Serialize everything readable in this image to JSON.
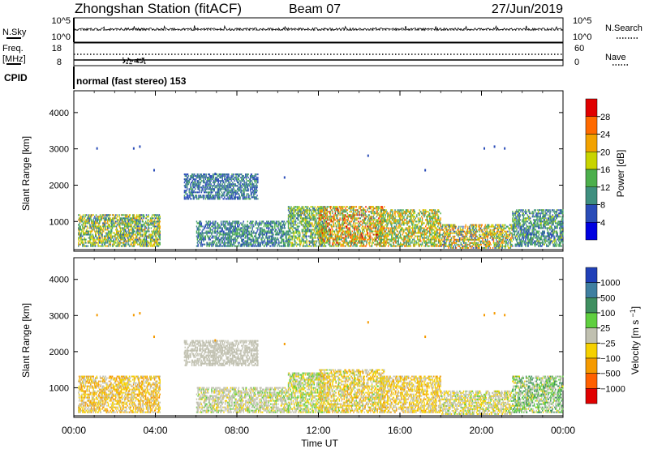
{
  "header": {
    "station": "Zhongshan Station (fitACF)",
    "beam": "Beam 07",
    "date": "27/Jun/2019"
  },
  "sky_panel": {
    "left_label": "N.Sky",
    "right_label": "N.Search",
    "left_ticks": [
      "10^5",
      "10^0"
    ],
    "right_ticks": [
      "10^5",
      "10^0"
    ]
  },
  "freq_panel": {
    "left_label_top": "Freq.",
    "left_label_unit": "[MHz]",
    "right_label": "Nave",
    "left_ticks": [
      "18",
      "8"
    ],
    "right_ticks": [
      "60",
      "0"
    ]
  },
  "cpid_panel": {
    "label": "CPID",
    "text": "normal (fast stereo) 153"
  },
  "x_axis": {
    "label": "Time UT",
    "ticks": [
      "00:00",
      "04:00",
      "08:00",
      "12:00",
      "16:00",
      "20:00",
      "00:00"
    ],
    "range_hours": [
      0,
      24
    ]
  },
  "chart_data": [
    {
      "type": "heatmap",
      "title": "",
      "xlabel": "Time UT",
      "ylabel": "Slant Range [km]",
      "xlim_hours": [
        0,
        24
      ],
      "ylim": [
        180,
        4600
      ],
      "yticks": [
        1000,
        2000,
        3000,
        4000
      ],
      "colorbar": {
        "label": "Power [dB]",
        "ticks": [
          "4",
          "8",
          "12",
          "16",
          "20",
          "24",
          "28"
        ],
        "range": [
          0,
          30
        ],
        "colors": [
          "#0000e0",
          "#2a4cb8",
          "#3f8f7f",
          "#4caf4c",
          "#c8d400",
          "#f2a200",
          "#ff6a00",
          "#e00000"
        ]
      },
      "scatter_regions": [
        {
          "t": [
            0.2,
            4.2
          ],
          "r": [
            300,
            1200
          ],
          "value": [
            6,
            22
          ]
        },
        {
          "t": [
            5.4,
            9.0
          ],
          "r": [
            1600,
            2300
          ],
          "value": [
            4,
            12
          ]
        },
        {
          "t": [
            6.0,
            10.5
          ],
          "r": [
            300,
            1000
          ],
          "value": [
            4,
            14
          ]
        },
        {
          "t": [
            10.5,
            12.3
          ],
          "r": [
            300,
            1400
          ],
          "value": [
            6,
            20
          ]
        },
        {
          "t": [
            12.0,
            15.2
          ],
          "r": [
            300,
            1400
          ],
          "value": [
            8,
            28
          ]
        },
        {
          "t": [
            15.0,
            18.0
          ],
          "r": [
            300,
            1300
          ],
          "value": [
            8,
            24
          ]
        },
        {
          "t": [
            18.0,
            21.5
          ],
          "r": [
            250,
            900
          ],
          "value": [
            6,
            26
          ]
        },
        {
          "t": [
            21.5,
            24.0
          ],
          "r": [
            300,
            1300
          ],
          "value": [
            4,
            16
          ]
        }
      ]
    },
    {
      "type": "heatmap",
      "title": "",
      "xlabel": "Time UT",
      "ylabel": "Slant Range [km]",
      "xlim_hours": [
        0,
        24
      ],
      "ylim": [
        180,
        4600
      ],
      "yticks": [
        1000,
        2000,
        3000,
        4000
      ],
      "colorbar": {
        "label": "Velocity [m s^-1]",
        "ticks": [
          "1000",
          "500",
          "100",
          "25",
          "−25",
          "−100",
          "−500",
          "−1000"
        ],
        "range": [
          -1200,
          1200
        ],
        "colors": [
          "#2040b8",
          "#3f7fa0",
          "#3f8f60",
          "#5fcf3f",
          "#c0c0b0",
          "#f5d000",
          "#f59a00",
          "#ff6000",
          "#e00000"
        ]
      },
      "scatter_regions": [
        {
          "t": [
            0.2,
            4.2
          ],
          "r": [
            300,
            1300
          ],
          "value": [
            -600,
            100
          ]
        },
        {
          "t": [
            5.4,
            9.0
          ],
          "r": [
            1600,
            2300
          ],
          "value": [
            -25,
            25
          ]
        },
        {
          "t": [
            6.0,
            10.5
          ],
          "r": [
            300,
            1000
          ],
          "value": [
            -200,
            200
          ]
        },
        {
          "t": [
            10.5,
            12.3
          ],
          "r": [
            300,
            1400
          ],
          "value": [
            -300,
            300
          ]
        },
        {
          "t": [
            12.0,
            15.2
          ],
          "r": [
            300,
            1500
          ],
          "value": [
            -500,
            200
          ]
        },
        {
          "t": [
            15.0,
            18.0
          ],
          "r": [
            300,
            1300
          ],
          "value": [
            -500,
            100
          ]
        },
        {
          "t": [
            18.0,
            21.5
          ],
          "r": [
            250,
            900
          ],
          "value": [
            -300,
            200
          ]
        },
        {
          "t": [
            21.5,
            24.0
          ],
          "r": [
            300,
            1300
          ],
          "value": [
            -200,
            600
          ]
        }
      ]
    }
  ]
}
